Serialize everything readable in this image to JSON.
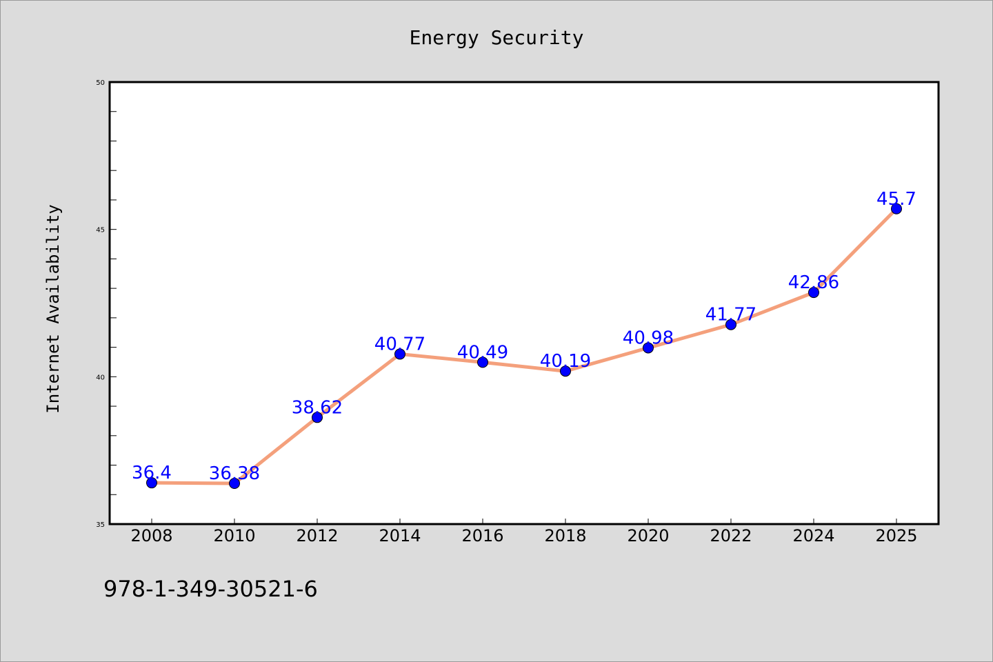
{
  "colors": {
    "background": "#dcdcdc",
    "plot_background": "#ffffff",
    "line": "#f4a07c",
    "marker": "#0000ff",
    "data_label": "#0000ff",
    "axis": "#000000"
  },
  "footer": {
    "text": "978-1-349-30521-6"
  },
  "chart_data": {
    "type": "line",
    "title": "Energy Security",
    "xlabel": "",
    "ylabel": "Internet Availability",
    "categories": [
      "2008",
      "2010",
      "2012",
      "2014",
      "2016",
      "2018",
      "2020",
      "2022",
      "2024",
      "2025"
    ],
    "series": [
      {
        "values": [
          36.4,
          36.38,
          38.62,
          40.77,
          40.49,
          40.19,
          40.98,
          41.77,
          42.86,
          45.7
        ]
      }
    ],
    "data_labels": [
      "36.4",
      "36.38",
      "38.62",
      "40.77",
      "40.49",
      "40.19",
      "40.98",
      "41.77",
      "42.86",
      "45.7"
    ],
    "ylim": [
      35,
      50
    ],
    "yticks": [
      "35",
      "40",
      "45",
      "50"
    ],
    "grid": false,
    "legend": "none"
  }
}
